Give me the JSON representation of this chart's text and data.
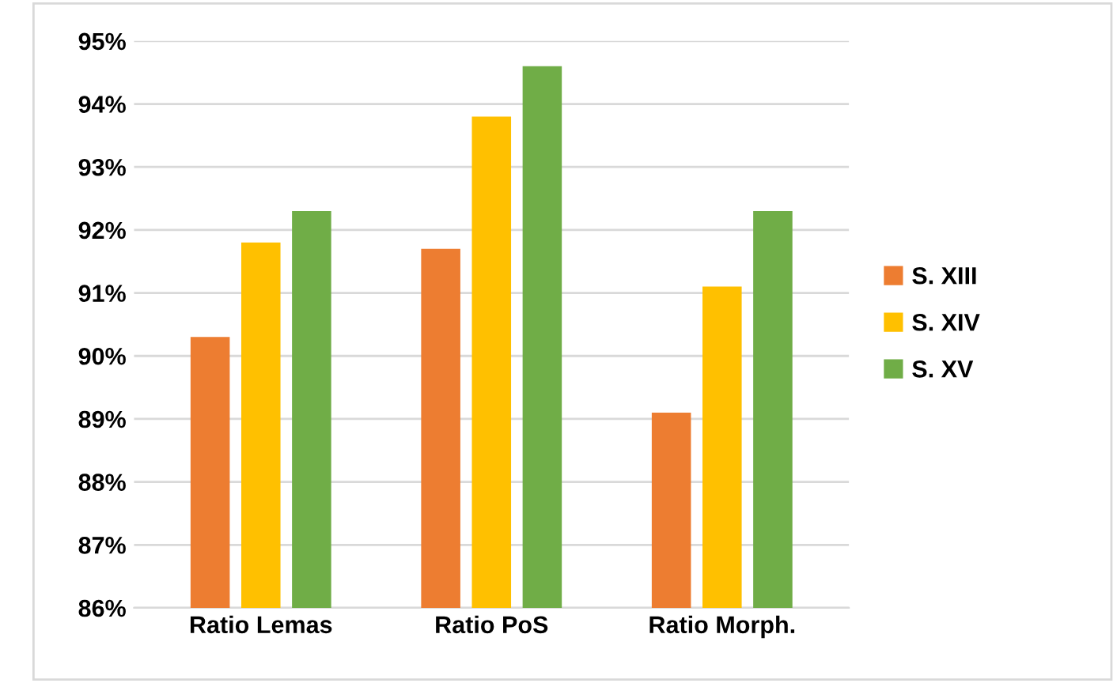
{
  "chart_data": {
    "type": "bar",
    "categories": [
      "Ratio Lemas",
      "Ratio PoS",
      "Ratio Morph."
    ],
    "series": [
      {
        "name": "S. XIII",
        "color": "#ed7d31",
        "values": [
          90.3,
          91.7,
          89.1
        ]
      },
      {
        "name": "S. XIV",
        "color": "#ffc000",
        "values": [
          91.8,
          93.8,
          91.1
        ]
      },
      {
        "name": "S. XV",
        "color": "#70ad47",
        "values": [
          92.3,
          94.6,
          92.3
        ]
      }
    ],
    "ylim": [
      86,
      95
    ],
    "yticks": [
      {
        "value": 86,
        "label": "86%"
      },
      {
        "value": 87,
        "label": "87%"
      },
      {
        "value": 88,
        "label": "88%"
      },
      {
        "value": 89,
        "label": "89%"
      },
      {
        "value": 90,
        "label": "90%"
      },
      {
        "value": 91,
        "label": "91%"
      },
      {
        "value": 92,
        "label": "92%"
      },
      {
        "value": 93,
        "label": "93%"
      },
      {
        "value": 94,
        "label": "94%"
      },
      {
        "value": 95,
        "label": "95%"
      }
    ],
    "grid": "y",
    "legend": "right"
  }
}
